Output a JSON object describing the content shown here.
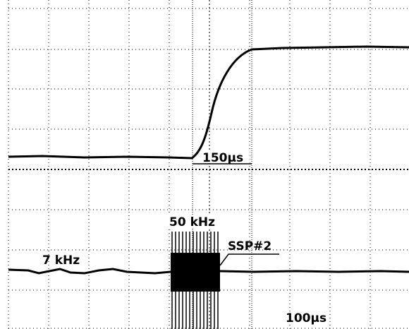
{
  "annotations": {
    "rise_time": "150µs",
    "burst_freq": "50 kHz",
    "burst_name": "SSP#2",
    "base_freq": "7 kHz",
    "time_scale": "100µs"
  }
}
